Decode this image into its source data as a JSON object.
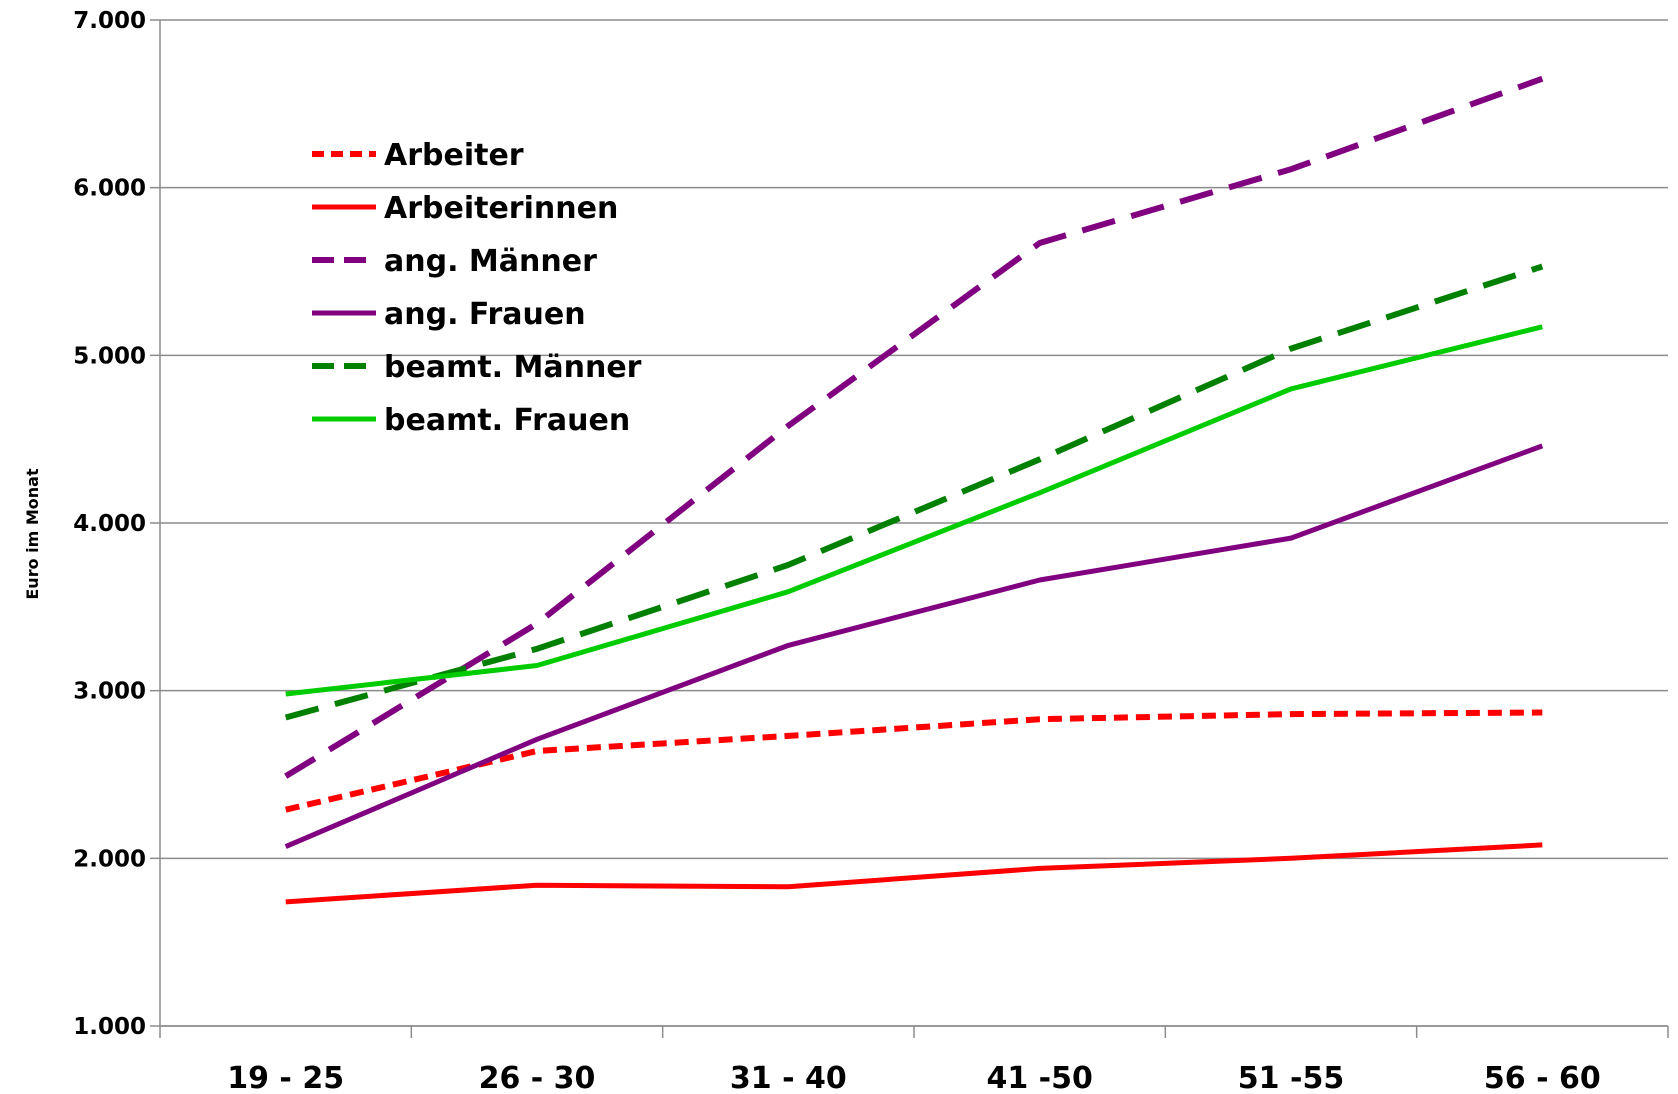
{
  "chart_data": {
    "type": "line",
    "title": "",
    "xlabel": "",
    "ylabel": "Euro im Monat",
    "categories": [
      "19 - 25",
      "26 - 30",
      "31 - 40",
      "41 -50",
      "51 -55",
      "56 - 60"
    ],
    "ylim": [
      1000,
      7000
    ],
    "yticks": [
      1000,
      2000,
      3000,
      4000,
      5000,
      6000,
      7000
    ],
    "ytick_labels": [
      "1.000",
      "2.000",
      "3.000",
      "4.000",
      "5.000",
      "6.000",
      "7.000"
    ],
    "grid": "horizontal",
    "legend": "top-left",
    "series": [
      {
        "name": "Arbeiter",
        "color": "#FF0000",
        "style": "dotted",
        "values": [
          2290,
          2640,
          2730,
          2830,
          2860,
          2870
        ]
      },
      {
        "name": "Arbeiterinnen",
        "color": "#FF0000",
        "style": "solid",
        "values": [
          1740,
          1840,
          1830,
          1940,
          2000,
          2080
        ]
      },
      {
        "name": "ang. Männer",
        "color": "#800080",
        "style": "dashed",
        "values": [
          2490,
          3400,
          4580,
          5670,
          6110,
          6650
        ]
      },
      {
        "name": "ang. Frauen",
        "color": "#800080",
        "style": "solid",
        "values": [
          2070,
          2710,
          3270,
          3660,
          3910,
          4460
        ]
      },
      {
        "name": "beamt. Männer",
        "color": "#008000",
        "style": "dashed",
        "values": [
          2840,
          3250,
          3750,
          4380,
          5040,
          5530
        ]
      },
      {
        "name": "beamt. Frauen",
        "color": "#00CC00",
        "style": "solid",
        "values": [
          2980,
          3150,
          3590,
          4180,
          4800,
          5170
        ]
      }
    ]
  }
}
